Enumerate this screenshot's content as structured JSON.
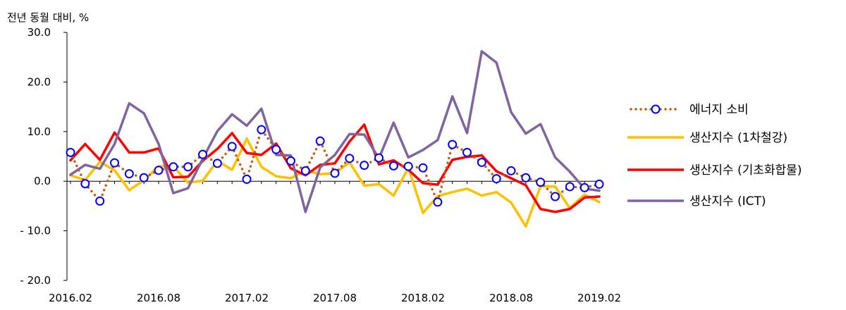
{
  "chart_data": {
    "type": "line",
    "unit_label": "전년 동월 대비, %",
    "ylim": [
      -20,
      30
    ],
    "y_ticks": [
      "30.0",
      "20.0",
      "10.0",
      "0.0",
      "- 10.0",
      "- 20.0"
    ],
    "y_tick_values": [
      30,
      20,
      10,
      0,
      -10,
      -20
    ],
    "x": [
      "2016.02",
      "2016.03",
      "2016.04",
      "2016.05",
      "2016.06",
      "2016.07",
      "2016.08",
      "2016.09",
      "2016.10",
      "2016.11",
      "2016.12",
      "2017.01",
      "2017.02",
      "2017.03",
      "2017.04",
      "2017.05",
      "2017.06",
      "2017.07",
      "2017.08",
      "2017.09",
      "2017.10",
      "2017.11",
      "2017.12",
      "2018.01",
      "2018.02",
      "2018.03",
      "2018.04",
      "2018.05",
      "2018.06",
      "2018.07",
      "2018.08",
      "2018.09",
      "2018.10",
      "2018.11",
      "2018.12",
      "2019.01",
      "2019.02"
    ],
    "x_tick_labels": [
      "2016.02",
      "2016.08",
      "2017.02",
      "2017.08",
      "2018.02",
      "2018.08",
      "2019.02"
    ],
    "x_tick_index": [
      0,
      6,
      12,
      18,
      24,
      30,
      36
    ],
    "grid": false,
    "legend_position": "right",
    "series": [
      {
        "name": "에너지 소비",
        "color": "#c55a11",
        "marker_color": "#0000ff",
        "style": "dotted-with-circle-markers",
        "values": [
          5.8,
          -0.5,
          -4.0,
          3.7,
          1.5,
          0.7,
          2.2,
          2.9,
          2.9,
          5.4,
          3.6,
          7.0,
          0.4,
          10.4,
          6.4,
          4.1,
          2.1,
          8.1,
          1.6,
          4.6,
          3.2,
          4.7,
          3.1,
          3.0,
          2.7,
          -4.2,
          7.4,
          5.8,
          3.8,
          0.5,
          2.1,
          0.7,
          -0.2,
          -3.1,
          -1.1,
          -1.3,
          -0.6
        ]
      },
      {
        "name": "생산지수 (1차철강)",
        "color": "#ffc000",
        "style": "solid",
        "values": [
          1.2,
          0.2,
          3.9,
          2.2,
          -1.8,
          0.2,
          3.0,
          3.0,
          -0.3,
          0.1,
          4.1,
          2.3,
          8.6,
          2.9,
          1.0,
          0.6,
          2.2,
          1.4,
          1.6,
          3.8,
          -0.9,
          -0.6,
          -2.9,
          2.7,
          -6.4,
          -3.0,
          -2.2,
          -1.5,
          -2.9,
          -2.2,
          -4.3,
          -9.1,
          -1.0,
          -1.1,
          -5.4,
          -2.7,
          -4.2
        ]
      },
      {
        "name": "생산지수 (기초화합물)",
        "color": "#ff0000",
        "style": "solid",
        "values": [
          4.2,
          7.5,
          4.3,
          9.8,
          5.8,
          5.8,
          6.6,
          0.8,
          0.9,
          4.1,
          6.5,
          9.7,
          5.7,
          5.3,
          7.6,
          2.6,
          1.2,
          3.3,
          3.6,
          8.0,
          11.4,
          3.4,
          4.2,
          2.3,
          -0.4,
          -0.7,
          4.3,
          4.9,
          5.2,
          2.0,
          0.6,
          -0.8,
          -5.6,
          -6.2,
          -5.6,
          -3.3,
          -3.1
        ]
      },
      {
        "name": "생산지수 (ICT)",
        "color": "#8064a2",
        "style": "solid",
        "values": [
          1.3,
          3.3,
          2.5,
          7.5,
          15.7,
          13.7,
          7.5,
          -2.4,
          -1.4,
          4.5,
          10.1,
          13.5,
          11.2,
          14.6,
          5.3,
          5.2,
          -6.2,
          2.8,
          5.3,
          9.5,
          9.4,
          4.6,
          11.8,
          4.8,
          6.3,
          8.3,
          17.1,
          9.7,
          26.2,
          23.9,
          13.9,
          9.6,
          11.5,
          4.8,
          1.9,
          -1.5,
          -1.9
        ]
      }
    ]
  }
}
